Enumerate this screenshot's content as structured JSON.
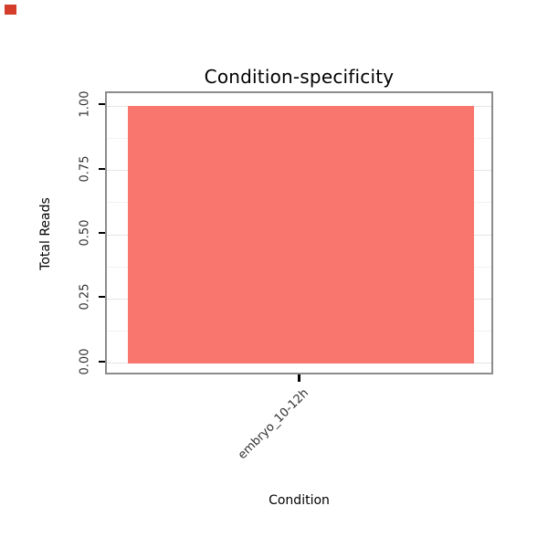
{
  "chart_data": {
    "type": "bar",
    "title": "Condition-specificity",
    "xlabel": "Condition",
    "ylabel": "Total Reads",
    "categories": [
      "embryo_10-12h"
    ],
    "values": [
      1.0
    ],
    "series": [
      {
        "name": "Total Reads",
        "values": [
          1.0
        ]
      }
    ],
    "ylim": [
      0,
      1
    ],
    "yticks": [
      0,
      0.25,
      0.5,
      0.75,
      1
    ],
    "ytick_labels": [
      "0.00",
      "0.25",
      "0.50",
      "0.75",
      "1.00"
    ],
    "grid": true,
    "legend": "none",
    "tick_label_rotation": {
      "x": 45,
      "y": 90
    },
    "colors": {
      "bar": "#F8766D",
      "panel_border": "#8C8C8C",
      "grid_major": "#E5E5E5",
      "grid_minor": "#F2F2F2",
      "tick_mark": "#000000",
      "tick_text": "#303030",
      "corner_artifact": "#D43D2A"
    }
  }
}
